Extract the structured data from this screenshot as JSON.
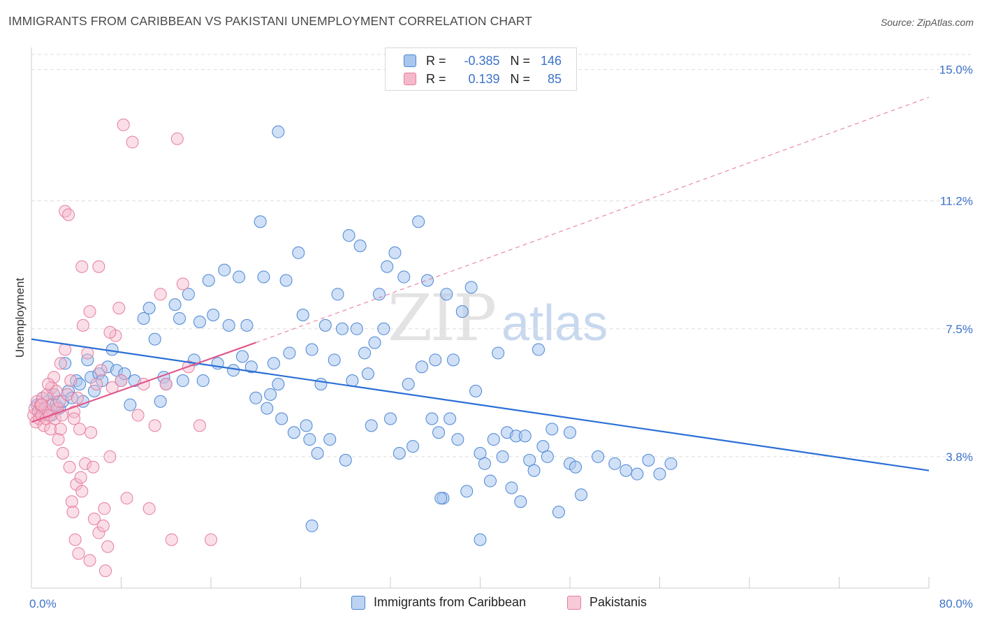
{
  "title": "IMMIGRANTS FROM CARIBBEAN VS PAKISTANI UNEMPLOYMENT CORRELATION CHART",
  "source": "Source: ZipAtlas.com",
  "watermark": {
    "zip": "ZIP",
    "atlas": "atlas"
  },
  "colors": {
    "blue_fill": "#a9c7ee",
    "blue_stroke": "#4a86d4",
    "blue_line": "#2a6fd6",
    "pink_fill": "#f5b8cb",
    "pink_stroke": "#e67d9c",
    "pink_line": "#e0578a",
    "grid": "#dddddd",
    "tick_text": "#3d72c9"
  },
  "legend": {
    "rows": [
      {
        "r_label": "R =",
        "r_value": "-0.385",
        "n_label": "N =",
        "n_value": "146"
      },
      {
        "r_label": "R =",
        "r_value": "0.139",
        "n_label": "N =",
        "n_value": "85"
      }
    ]
  },
  "bottom_legend": {
    "series1": "Immigrants from Caribbean",
    "series2": "Pakistanis"
  },
  "chart_data": {
    "type": "scatter",
    "xlabel": "",
    "ylabel": "Unemployment",
    "xlim": [
      0,
      80
    ],
    "ylim": [
      0,
      15.8
    ],
    "x_tick_labels": [
      "0.0%",
      "80.0%"
    ],
    "y_ticks": [
      3.8,
      7.5,
      11.2,
      15.0
    ],
    "y_tick_labels": [
      "3.8%",
      "7.5%",
      "11.2%",
      "15.0%"
    ],
    "grid": true,
    "legend_position": "top-center",
    "series": [
      {
        "name": "Immigrants from Caribbean",
        "trend": {
          "x0": 0,
          "y0": 7.2,
          "x1": 80,
          "y1": 3.4
        },
        "points": [
          [
            0.5,
            5.3
          ],
          [
            0.8,
            5.1
          ],
          [
            1.0,
            5.5
          ],
          [
            1.2,
            5.2
          ],
          [
            1.5,
            5.4
          ],
          [
            1.8,
            5.0
          ],
          [
            2.0,
            5.6
          ],
          [
            2.2,
            5.3
          ],
          [
            2.5,
            5.2
          ],
          [
            2.8,
            5.4
          ],
          [
            3.0,
            6.5
          ],
          [
            3.3,
            5.7
          ],
          [
            3.6,
            5.5
          ],
          [
            4.0,
            6.0
          ],
          [
            4.3,
            5.9
          ],
          [
            4.6,
            5.4
          ],
          [
            5.0,
            6.6
          ],
          [
            5.3,
            6.1
          ],
          [
            5.6,
            5.7
          ],
          [
            6.0,
            6.2
          ],
          [
            6.3,
            6.0
          ],
          [
            6.8,
            6.4
          ],
          [
            7.2,
            6.9
          ],
          [
            7.6,
            6.3
          ],
          [
            8.0,
            6.0
          ],
          [
            8.3,
            6.2
          ],
          [
            8.8,
            5.3
          ],
          [
            9.2,
            6.0
          ],
          [
            10.0,
            7.8
          ],
          [
            10.5,
            8.1
          ],
          [
            11.0,
            7.2
          ],
          [
            11.5,
            5.4
          ],
          [
            11.8,
            6.1
          ],
          [
            12.0,
            5.9
          ],
          [
            12.8,
            8.2
          ],
          [
            13.2,
            7.8
          ],
          [
            13.5,
            6.0
          ],
          [
            14.0,
            8.5
          ],
          [
            14.5,
            6.6
          ],
          [
            15.0,
            7.7
          ],
          [
            15.3,
            6.0
          ],
          [
            15.8,
            8.9
          ],
          [
            16.2,
            7.9
          ],
          [
            16.6,
            6.5
          ],
          [
            17.2,
            9.2
          ],
          [
            17.6,
            7.6
          ],
          [
            18.0,
            6.3
          ],
          [
            18.5,
            9.0
          ],
          [
            18.8,
            6.7
          ],
          [
            19.2,
            7.6
          ],
          [
            19.6,
            6.4
          ],
          [
            20.0,
            5.5
          ],
          [
            20.4,
            10.6
          ],
          [
            20.7,
            9.0
          ],
          [
            21.0,
            5.2
          ],
          [
            21.3,
            5.6
          ],
          [
            21.6,
            6.5
          ],
          [
            22.0,
            5.9
          ],
          [
            22.3,
            4.9
          ],
          [
            22.7,
            8.9
          ],
          [
            23.0,
            6.8
          ],
          [
            23.4,
            4.5
          ],
          [
            23.8,
            9.7
          ],
          [
            24.2,
            7.9
          ],
          [
            24.5,
            4.7
          ],
          [
            24.8,
            4.3
          ],
          [
            25.0,
            6.9
          ],
          [
            25.5,
            3.9
          ],
          [
            25.8,
            5.9
          ],
          [
            26.2,
            7.6
          ],
          [
            26.6,
            4.3
          ],
          [
            27.0,
            6.6
          ],
          [
            27.3,
            8.5
          ],
          [
            27.7,
            7.5
          ],
          [
            28.0,
            3.7
          ],
          [
            28.3,
            10.2
          ],
          [
            28.6,
            6.0
          ],
          [
            29.0,
            7.5
          ],
          [
            29.3,
            9.9
          ],
          [
            29.7,
            6.8
          ],
          [
            30.0,
            6.2
          ],
          [
            30.3,
            4.7
          ],
          [
            30.6,
            7.1
          ],
          [
            31.0,
            8.5
          ],
          [
            31.4,
            7.5
          ],
          [
            31.7,
            9.3
          ],
          [
            32.0,
            4.9
          ],
          [
            32.4,
            9.7
          ],
          [
            32.8,
            3.9
          ],
          [
            33.2,
            9.0
          ],
          [
            33.6,
            5.9
          ],
          [
            34.0,
            4.1
          ],
          [
            34.5,
            10.6
          ],
          [
            34.8,
            6.4
          ],
          [
            35.3,
            8.9
          ],
          [
            35.7,
            4.9
          ],
          [
            36.0,
            6.6
          ],
          [
            36.3,
            4.5
          ],
          [
            36.7,
            2.6
          ],
          [
            37.0,
            8.5
          ],
          [
            37.3,
            4.9
          ],
          [
            37.6,
            6.6
          ],
          [
            38.0,
            4.3
          ],
          [
            38.4,
            8.0
          ],
          [
            38.8,
            2.8
          ],
          [
            39.2,
            8.7
          ],
          [
            39.6,
            5.7
          ],
          [
            40.0,
            3.9
          ],
          [
            40.4,
            3.6
          ],
          [
            40.9,
            3.1
          ],
          [
            41.2,
            4.3
          ],
          [
            41.6,
            6.8
          ],
          [
            42.0,
            3.8
          ],
          [
            42.4,
            4.5
          ],
          [
            42.8,
            2.9
          ],
          [
            43.2,
            4.4
          ],
          [
            43.6,
            2.5
          ],
          [
            44.0,
            4.4
          ],
          [
            44.4,
            3.7
          ],
          [
            44.8,
            3.4
          ],
          [
            45.2,
            6.9
          ],
          [
            45.6,
            4.1
          ],
          [
            46.0,
            3.8
          ],
          [
            46.4,
            4.6
          ],
          [
            47.0,
            2.2
          ],
          [
            48.0,
            3.6
          ],
          [
            48.5,
            3.5
          ],
          [
            49.0,
            2.7
          ],
          [
            50.5,
            3.8
          ],
          [
            52.0,
            3.6
          ],
          [
            53.0,
            3.4
          ],
          [
            54.0,
            3.3
          ],
          [
            55.0,
            3.7
          ],
          [
            56.0,
            3.3
          ],
          [
            22.0,
            13.2
          ],
          [
            40.0,
            1.4
          ],
          [
            25.0,
            1.8
          ],
          [
            36.5,
            2.6
          ],
          [
            57.0,
            3.6
          ],
          [
            48.0,
            4.5
          ]
        ]
      },
      {
        "name": "Pakistanis",
        "trend": {
          "x0": 0,
          "y0": 4.8,
          "x1": 20,
          "y1": 7.1
        },
        "trend_extension": {
          "x0": 20,
          "y0": 7.1,
          "x1": 80,
          "y1": 14.2
        },
        "points": [
          [
            0.2,
            5.0
          ],
          [
            0.3,
            5.2
          ],
          [
            0.4,
            4.8
          ],
          [
            0.5,
            5.4
          ],
          [
            0.6,
            5.1
          ],
          [
            0.7,
            4.9
          ],
          [
            0.8,
            5.3
          ],
          [
            0.9,
            5.0
          ],
          [
            1.0,
            5.5
          ],
          [
            1.1,
            4.7
          ],
          [
            1.2,
            5.2
          ],
          [
            1.3,
            4.9
          ],
          [
            1.4,
            5.6
          ],
          [
            1.5,
            5.1
          ],
          [
            1.6,
            5.0
          ],
          [
            1.7,
            4.6
          ],
          [
            1.8,
            5.8
          ],
          [
            1.9,
            5.3
          ],
          [
            2.0,
            6.1
          ],
          [
            2.1,
            4.9
          ],
          [
            2.2,
            5.7
          ],
          [
            2.3,
            5.2
          ],
          [
            2.4,
            4.3
          ],
          [
            2.5,
            5.4
          ],
          [
            2.6,
            6.5
          ],
          [
            2.7,
            5.0
          ],
          [
            2.8,
            3.9
          ],
          [
            3.0,
            6.9
          ],
          [
            3.2,
            5.6
          ],
          [
            3.4,
            3.5
          ],
          [
            3.5,
            6.0
          ],
          [
            3.6,
            2.5
          ],
          [
            3.7,
            2.2
          ],
          [
            3.8,
            5.1
          ],
          [
            3.9,
            1.4
          ],
          [
            4.0,
            3.0
          ],
          [
            4.1,
            5.5
          ],
          [
            4.2,
            1.0
          ],
          [
            4.3,
            4.6
          ],
          [
            4.4,
            3.2
          ],
          [
            4.5,
            2.8
          ],
          [
            4.6,
            7.6
          ],
          [
            4.8,
            3.6
          ],
          [
            5.0,
            6.8
          ],
          [
            5.2,
            0.8
          ],
          [
            5.3,
            4.5
          ],
          [
            5.5,
            3.5
          ],
          [
            5.6,
            2.0
          ],
          [
            5.8,
            5.9
          ],
          [
            6.0,
            1.6
          ],
          [
            6.2,
            6.3
          ],
          [
            6.4,
            1.8
          ],
          [
            6.5,
            2.3
          ],
          [
            6.6,
            0.5
          ],
          [
            6.8,
            1.2
          ],
          [
            7.0,
            3.8
          ],
          [
            7.2,
            5.8
          ],
          [
            7.5,
            7.3
          ],
          [
            7.8,
            8.1
          ],
          [
            8.0,
            6.0
          ],
          [
            8.2,
            13.4
          ],
          [
            8.5,
            2.6
          ],
          [
            9.0,
            12.9
          ],
          [
            9.5,
            5.0
          ],
          [
            10.0,
            5.9
          ],
          [
            10.5,
            2.3
          ],
          [
            11.0,
            4.7
          ],
          [
            11.5,
            8.5
          ],
          [
            12.0,
            5.9
          ],
          [
            12.5,
            1.4
          ],
          [
            13.0,
            13.0
          ],
          [
            13.5,
            8.8
          ],
          [
            14.0,
            6.4
          ],
          [
            15.0,
            4.7
          ],
          [
            16.0,
            1.4
          ],
          [
            3.0,
            10.9
          ],
          [
            3.3,
            10.8
          ],
          [
            4.5,
            9.3
          ],
          [
            5.2,
            8.0
          ],
          [
            6.0,
            9.3
          ],
          [
            7.0,
            7.4
          ],
          [
            3.8,
            4.9
          ],
          [
            2.6,
            4.6
          ],
          [
            1.5,
            5.9
          ],
          [
            0.9,
            5.3
          ]
        ]
      }
    ]
  }
}
